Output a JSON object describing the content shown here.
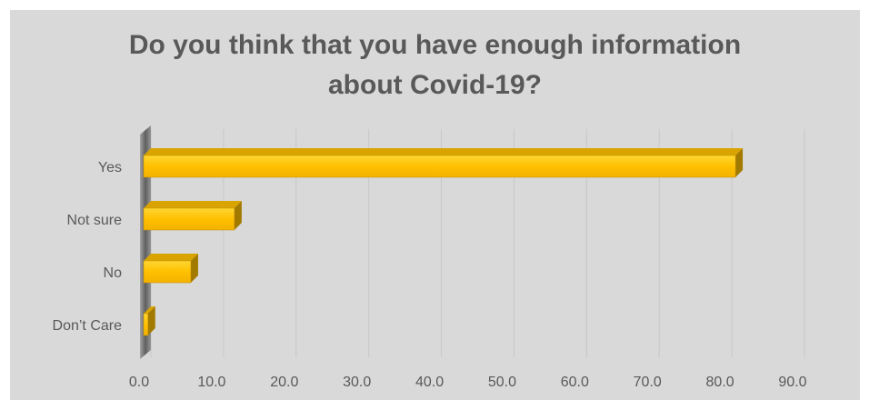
{
  "chart_data": {
    "type": "bar",
    "orientation": "horizontal",
    "title": [
      "Do you think that you have enough information",
      "about Covid-19?"
    ],
    "categories": [
      "Yes",
      "Not sure",
      "No",
      "Don’t Care"
    ],
    "values": [
      81.5,
      12.5,
      6.5,
      0.6
    ],
    "xlim": [
      0,
      90
    ],
    "xticks": [
      "0.0",
      "10.0",
      "20.0",
      "30.0",
      "40.0",
      "50.0",
      "60.0",
      "70.0",
      "80.0",
      "90.0"
    ],
    "grid": true,
    "legend": "none",
    "bar_color": "#ffc000",
    "bar_edge_color": "#c49000"
  }
}
